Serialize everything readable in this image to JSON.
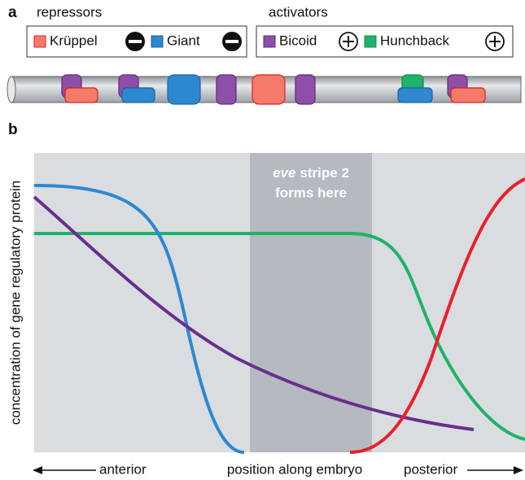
{
  "panel_a": {
    "label": "a",
    "repressors": {
      "title": "repressors",
      "items": [
        "Krüppel",
        "Giant"
      ]
    },
    "activators": {
      "title": "activators",
      "items": [
        "Bicoid",
        "Hunchback"
      ]
    }
  },
  "panel_b": {
    "label": "b",
    "band_label": {
      "italic": "eve",
      "line1": "stripe 2",
      "line2": "forms here"
    },
    "y_axis_label": "concentration of gene regulatory protein",
    "x_labels": {
      "left": "anterior",
      "center": "position along embryo",
      "right": "posterior"
    }
  }
}
